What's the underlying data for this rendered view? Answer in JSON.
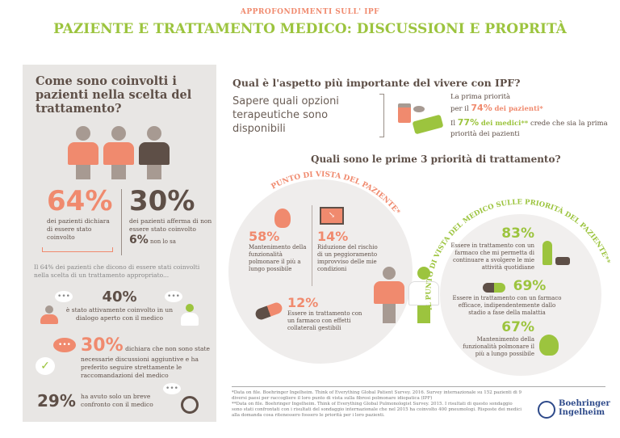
{
  "header": {
    "kicker": "APPROFONDIMENTI SULL' IPF",
    "title": "PAZIENTE E TRATTAMENTO MEDICO: DISCUSSIONI E PROPRITÀ"
  },
  "left": {
    "heading": "Come sono coinvolti i pazienti nella scelta del trattamento?",
    "stat1": {
      "value": "64%",
      "text": "dei pazienti dichiara di essere stato coinvolto"
    },
    "stat2": {
      "value": "30%",
      "text": "dei pazienti afferma di non essere stato coinvolto",
      "sub_value": "6%",
      "sub_text": "non lo sa"
    },
    "note": "Il 64% dei pazienti che dicono di essere stati coinvolti nella scelta di un trattamento appropriato...",
    "stat3": {
      "value": "40%",
      "text": "è stato attivamente coinvolto in un dialogo aperto con il medico"
    },
    "stat4": {
      "value": "30%",
      "text": "dichiara che non sono state necessarie discussioni aggiuntive e ha preferito seguire strettamente le raccomandazioni del medico"
    },
    "stat5": {
      "value": "29%",
      "text": "ha avuto solo un breve confronto con il medico"
    },
    "bubble": "•••"
  },
  "top": {
    "heading": "Qual è l'aspetto più importante del vivere con IPF?",
    "answer": "Sapere quali opzioni terapeutiche sono disponibili",
    "p1a": "La prima priorità",
    "p1b": "per il",
    "p1v": "74%",
    "p1c": "dei pazienti*",
    "p2a": "Il",
    "p2v": "77%",
    "p2b": "dei medici**",
    "p2c": "crede che sia la prima priorità dei pazienti"
  },
  "priorities": {
    "heading": "Quali sono le prime 3 priorità di trattamento?",
    "patient": {
      "arc": "PUNTO DI VISTA DEL PAZIENTE*",
      "items": [
        {
          "value": "58%",
          "text": "Mantenimento della funzionalità polmonare il più a lungo possibile"
        },
        {
          "value": "14%",
          "text": "Riduzione del rischio di un peggioramento improvviso delle mie condizioni"
        },
        {
          "value": "12%",
          "text": "Essere in trattamento con un farmaco con effetti collaterali gestibili"
        }
      ]
    },
    "doctor": {
      "arc": "IL PUNTO DI VISTA DEL MEDICO SULLE PRIORITÀ DEL PAZIENTE**",
      "items": [
        {
          "value": "83%",
          "text": "Essere in trattamento con un farmaco che mi permetta di continuare a svolgere le mie attività quotidiane"
        },
        {
          "value": "69%",
          "text": "Essere in trattamento con un farmaco efficace, indipendentemente dallo stadio a fase della malattia"
        },
        {
          "value": "67%",
          "text": "Mantenimento della funzionalità polmonare il più a lungo possibile"
        }
      ]
    }
  },
  "footer": {
    "note1": "*Data on file. Boehringer Ingelheim. Think of Everything Global Patient Survey. 2016. Survey internazionale su 152 pazienti di 9 diversi paesi per raccogliere il loro punto di vista sulla fibrosi polmonare idiopatica (IPF)",
    "note2": "**Data on file. Boehringer Ingelheim. Think of Everything Global Pulmonologist Survey. 2015. I risultati di questo sondaggio sono stati confrontati con i risultati del sondaggio internazionale che nel 2015 ha coinvolto 400 pneumologi. Risposte dei medici alla domanda cosa ritenessero fossero le priorità per i loro pazienti.",
    "logo_line1": "Boehringer",
    "logo_line2": "Ingelheim"
  },
  "colors": {
    "salmon": "#f08a6e",
    "brown": "#5e4f47",
    "green": "#9cc43e",
    "panel": "#e8e6e4"
  }
}
